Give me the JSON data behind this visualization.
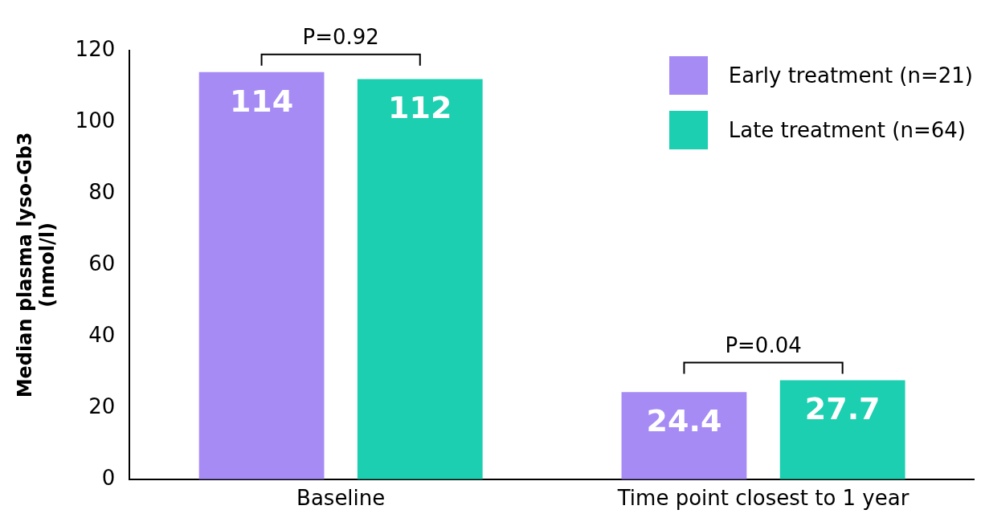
{
  "chart_data": {
    "type": "bar",
    "ylabel": "Median plasma lyso-Gb3\n(nmol/l)",
    "categories": [
      "Baseline",
      "Time point closest to 1 year"
    ],
    "series": [
      {
        "name": "Early treatment (n=21)",
        "color": "#a78bf5",
        "values": [
          114,
          24.4
        ]
      },
      {
        "name": "Late treatment (n=64)",
        "color": "#1ccfb0",
        "values": [
          112,
          27.7
        ]
      }
    ],
    "ylim": [
      0,
      120
    ],
    "yticks": [
      0,
      20,
      40,
      60,
      80,
      100,
      120
    ],
    "grid": false,
    "legend": "top right",
    "data_labels": true,
    "annotations": [
      "P=0.92",
      "P=0.04"
    ]
  }
}
